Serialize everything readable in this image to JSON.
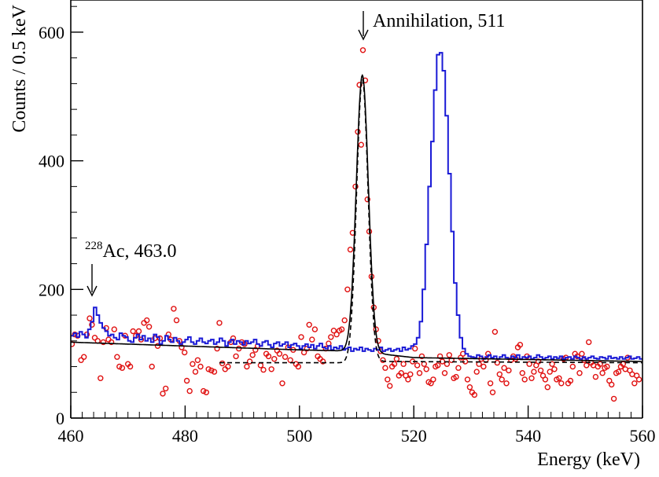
{
  "chart_data": {
    "type": "line",
    "xlabel": "Energy (keV)",
    "ylabel": "Counts / 0.5 keV",
    "xlim": [
      460,
      560
    ],
    "ylim": [
      0,
      650
    ],
    "x_ticks": [
      460,
      480,
      500,
      520,
      540,
      560
    ],
    "y_ticks": [
      0,
      200,
      400,
      600
    ],
    "annotations": [
      {
        "id": "ann511",
        "text": "Annihilation, 511",
        "x": 511,
        "y": 620,
        "arrow_to_y": 585
      },
      {
        "id": "ann463",
        "sup": "228",
        "text": "Ac, 463.0",
        "x": 463,
        "y": 205,
        "arrow_to_y": 180
      }
    ],
    "colors": {
      "histogram": "#1a1ad6",
      "points": "#e01010",
      "fit": "#000000",
      "axis": "#000000"
    },
    "histogram": {
      "bin_width": 0.5,
      "x_start": 460,
      "values": [
        128,
        132,
        126,
        134,
        130,
        125,
        138,
        150,
        172,
        160,
        148,
        140,
        135,
        128,
        130,
        125,
        122,
        132,
        128,
        126,
        120,
        118,
        125,
        130,
        122,
        128,
        120,
        124,
        118,
        130,
        126,
        115,
        120,
        128,
        122,
        118,
        125,
        120,
        115,
        118,
        122,
        126,
        118,
        115,
        120,
        124,
        118,
        116,
        120,
        122,
        115,
        118,
        124,
        120,
        112,
        118,
        122,
        115,
        120,
        118,
        114,
        120,
        116,
        118,
        122,
        115,
        112,
        118,
        120,
        114,
        110,
        116,
        118,
        112,
        115,
        118,
        110,
        114,
        116,
        112,
        108,
        112,
        115,
        110,
        114,
        108,
        112,
        116,
        110,
        108,
        112,
        106,
        110,
        108,
        112,
        106,
        108,
        110,
        104,
        108,
        106,
        110,
        104,
        108,
        106,
        104,
        108,
        106,
        110,
        104,
        106,
        108,
        104,
        106,
        108,
        104,
        110,
        106,
        108,
        112,
        115,
        125,
        150,
        200,
        270,
        360,
        430,
        510,
        565,
        568,
        540,
        470,
        380,
        290,
        210,
        160,
        125,
        108,
        100,
        96,
        95,
        94,
        98,
        96,
        92,
        95,
        98,
        94,
        96,
        92,
        95,
        98,
        94,
        92,
        96,
        94,
        98,
        92,
        95,
        94,
        96,
        92,
        94,
        98,
        95,
        92,
        94,
        96,
        92,
        95,
        93,
        96,
        92,
        94,
        95,
        92,
        96,
        94,
        92,
        95,
        92,
        94,
        96,
        93,
        92,
        95,
        94,
        92,
        96,
        93,
        94,
        92,
        95,
        92,
        94,
        96,
        92,
        93,
        95,
        92,
        92
      ]
    },
    "fit_solid": {
      "peak_center": 511,
      "peak_height": 430,
      "sigma": 1.05,
      "background": [
        {
          "x": 460,
          "y": 118
        },
        {
          "x": 500,
          "y": 106
        },
        {
          "x": 510,
          "y": 104
        },
        {
          "x": 520,
          "y": 94
        },
        {
          "x": 560,
          "y": 88
        }
      ]
    },
    "fit_dashed": {
      "peak_center": 511,
      "peak_height": 440,
      "sigma": 1.0,
      "background": [
        {
          "x": 486,
          "y": 86
        },
        {
          "x": 508,
          "y": 86
        },
        {
          "x": 514,
          "y": 88
        },
        {
          "x": 560,
          "y": 86
        }
      ]
    },
    "points": [
      [
        460.2,
        115
      ],
      [
        460.7,
        130
      ],
      [
        461.2,
        128
      ],
      [
        461.8,
        90
      ],
      [
        462.3,
        95
      ],
      [
        462.8,
        130
      ],
      [
        463.3,
        155
      ],
      [
        463.7,
        145
      ],
      [
        464.2,
        125
      ],
      [
        464.7,
        120
      ],
      [
        465.2,
        62
      ],
      [
        465.7,
        118
      ],
      [
        466.2,
        140
      ],
      [
        466.6,
        122
      ],
      [
        467.1,
        118
      ],
      [
        467.6,
        138
      ],
      [
        468.1,
        95
      ],
      [
        468.5,
        80
      ],
      [
        469.0,
        78
      ],
      [
        469.5,
        128
      ],
      [
        470.0,
        84
      ],
      [
        470.4,
        80
      ],
      [
        470.9,
        135
      ],
      [
        471.4,
        128
      ],
      [
        471.9,
        135
      ],
      [
        472.3,
        122
      ],
      [
        472.8,
        148
      ],
      [
        473.3,
        152
      ],
      [
        473.7,
        142
      ],
      [
        474.2,
        80
      ],
      [
        474.7,
        124
      ],
      [
        475.2,
        112
      ],
      [
        475.6,
        124
      ],
      [
        476.1,
        38
      ],
      [
        476.6,
        46
      ],
      [
        477.1,
        130
      ],
      [
        477.5,
        122
      ],
      [
        478.0,
        170
      ],
      [
        478.5,
        152
      ],
      [
        479.0,
        120
      ],
      [
        479.4,
        110
      ],
      [
        479.9,
        102
      ],
      [
        480.3,
        58
      ],
      [
        480.8,
        42
      ],
      [
        481.3,
        84
      ],
      [
        481.8,
        72
      ],
      [
        482.2,
        90
      ],
      [
        482.7,
        80
      ],
      [
        483.2,
        42
      ],
      [
        483.7,
        40
      ],
      [
        484.1,
        76
      ],
      [
        484.6,
        74
      ],
      [
        485.1,
        72
      ],
      [
        485.6,
        108
      ],
      [
        486.0,
        148
      ],
      [
        486.5,
        85
      ],
      [
        487.0,
        76
      ],
      [
        487.5,
        80
      ],
      [
        488.0,
        118
      ],
      [
        488.4,
        124
      ],
      [
        488.9,
        96
      ],
      [
        489.4,
        108
      ],
      [
        489.9,
        118
      ],
      [
        490.4,
        115
      ],
      [
        490.8,
        80
      ],
      [
        491.3,
        88
      ],
      [
        491.8,
        98
      ],
      [
        492.3,
        106
      ],
      [
        492.7,
        112
      ],
      [
        493.2,
        82
      ],
      [
        493.7,
        75
      ],
      [
        494.2,
        100
      ],
      [
        494.6,
        96
      ],
      [
        495.1,
        76
      ],
      [
        495.6,
        92
      ],
      [
        496.1,
        105
      ],
      [
        496.5,
        100
      ],
      [
        497.0,
        54
      ],
      [
        497.5,
        95
      ],
      [
        498.0,
        110
      ],
      [
        498.4,
        90
      ],
      [
        498.9,
        106
      ],
      [
        499.4,
        84
      ],
      [
        499.8,
        80
      ],
      [
        500.3,
        126
      ],
      [
        500.8,
        102
      ],
      [
        501.3,
        108
      ],
      [
        501.7,
        145
      ],
      [
        502.2,
        122
      ],
      [
        502.7,
        138
      ],
      [
        503.2,
        96
      ],
      [
        503.6,
        92
      ],
      [
        504.1,
        88
      ],
      [
        504.6,
        108
      ],
      [
        505.1,
        116
      ],
      [
        505.5,
        126
      ],
      [
        506.0,
        136
      ],
      [
        506.5,
        130
      ],
      [
        507.0,
        136
      ],
      [
        507.4,
        138
      ],
      [
        507.9,
        152
      ],
      [
        508.4,
        200
      ],
      [
        508.9,
        262
      ],
      [
        509.3,
        288
      ],
      [
        509.8,
        360
      ],
      [
        510.2,
        445
      ],
      [
        510.5,
        518
      ],
      [
        510.8,
        425
      ],
      [
        511.1,
        572
      ],
      [
        511.5,
        525
      ],
      [
        511.9,
        340
      ],
      [
        512.2,
        290
      ],
      [
        512.6,
        220
      ],
      [
        513.0,
        172
      ],
      [
        513.4,
        138
      ],
      [
        513.8,
        120
      ],
      [
        514.2,
        104
      ],
      [
        514.6,
        90
      ],
      [
        515.0,
        78
      ],
      [
        515.4,
        60
      ],
      [
        515.8,
        50
      ],
      [
        516.2,
        80
      ],
      [
        516.6,
        84
      ],
      [
        517.0,
        92
      ],
      [
        517.4,
        66
      ],
      [
        517.8,
        70
      ],
      [
        518.2,
        84
      ],
      [
        518.6,
        66
      ],
      [
        519.0,
        60
      ],
      [
        519.4,
        68
      ],
      [
        519.8,
        88
      ],
      [
        520.2,
        108
      ],
      [
        520.6,
        82
      ],
      [
        521.0,
        70
      ],
      [
        521.4,
        96
      ],
      [
        521.8,
        84
      ],
      [
        522.2,
        76
      ],
      [
        522.6,
        56
      ],
      [
        523.0,
        54
      ],
      [
        523.4,
        60
      ],
      [
        523.8,
        80
      ],
      [
        524.2,
        82
      ],
      [
        524.6,
        96
      ],
      [
        525.0,
        88
      ],
      [
        525.4,
        70
      ],
      [
        525.8,
        84
      ],
      [
        526.2,
        98
      ],
      [
        526.6,
        90
      ],
      [
        527.0,
        62
      ],
      [
        527.4,
        64
      ],
      [
        527.8,
        78
      ],
      [
        528.2,
        94
      ],
      [
        528.6,
        100
      ],
      [
        529.0,
        88
      ],
      [
        529.4,
        60
      ],
      [
        529.8,
        48
      ],
      [
        530.2,
        40
      ],
      [
        530.6,
        36
      ],
      [
        531.0,
        72
      ],
      [
        531.4,
        84
      ],
      [
        531.8,
        92
      ],
      [
        532.2,
        80
      ],
      [
        532.6,
        90
      ],
      [
        533.0,
        100
      ],
      [
        533.4,
        54
      ],
      [
        533.8,
        40
      ],
      [
        534.2,
        134
      ],
      [
        534.6,
        86
      ],
      [
        535.0,
        68
      ],
      [
        535.4,
        60
      ],
      [
        535.8,
        78
      ],
      [
        536.2,
        54
      ],
      [
        536.6,
        74
      ],
      [
        537.0,
        90
      ],
      [
        537.4,
        96
      ],
      [
        537.8,
        92
      ],
      [
        538.2,
        110
      ],
      [
        538.6,
        114
      ],
      [
        539.0,
        70
      ],
      [
        539.4,
        60
      ],
      [
        539.8,
        96
      ],
      [
        540.2,
        84
      ],
      [
        540.6,
        62
      ],
      [
        541.0,
        72
      ],
      [
        541.4,
        82
      ],
      [
        541.8,
        88
      ],
      [
        542.2,
        74
      ],
      [
        542.6,
        66
      ],
      [
        543.0,
        60
      ],
      [
        543.4,
        48
      ],
      [
        543.8,
        72
      ],
      [
        544.2,
        84
      ],
      [
        544.6,
        76
      ],
      [
        545.0,
        60
      ],
      [
        545.4,
        62
      ],
      [
        545.8,
        54
      ],
      [
        546.2,
        92
      ],
      [
        546.6,
        94
      ],
      [
        547.0,
        54
      ],
      [
        547.4,
        58
      ],
      [
        547.8,
        80
      ],
      [
        548.2,
        100
      ],
      [
        548.6,
        96
      ],
      [
        549.0,
        70
      ],
      [
        549.4,
        100
      ],
      [
        549.8,
        90
      ],
      [
        550.2,
        82
      ],
      [
        550.6,
        118
      ],
      [
        551.0,
        86
      ],
      [
        551.4,
        82
      ],
      [
        551.8,
        64
      ],
      [
        552.2,
        80
      ],
      [
        552.6,
        84
      ],
      [
        553.0,
        70
      ],
      [
        553.4,
        78
      ],
      [
        553.8,
        80
      ],
      [
        554.2,
        58
      ],
      [
        554.6,
        52
      ],
      [
        555.0,
        30
      ],
      [
        555.4,
        70
      ],
      [
        555.8,
        72
      ],
      [
        556.2,
        80
      ],
      [
        556.6,
        84
      ],
      [
        557.0,
        76
      ],
      [
        557.4,
        94
      ],
      [
        557.8,
        74
      ],
      [
        558.2,
        68
      ],
      [
        558.6,
        54
      ],
      [
        559.0,
        66
      ],
      [
        559.4,
        60
      ]
    ]
  }
}
